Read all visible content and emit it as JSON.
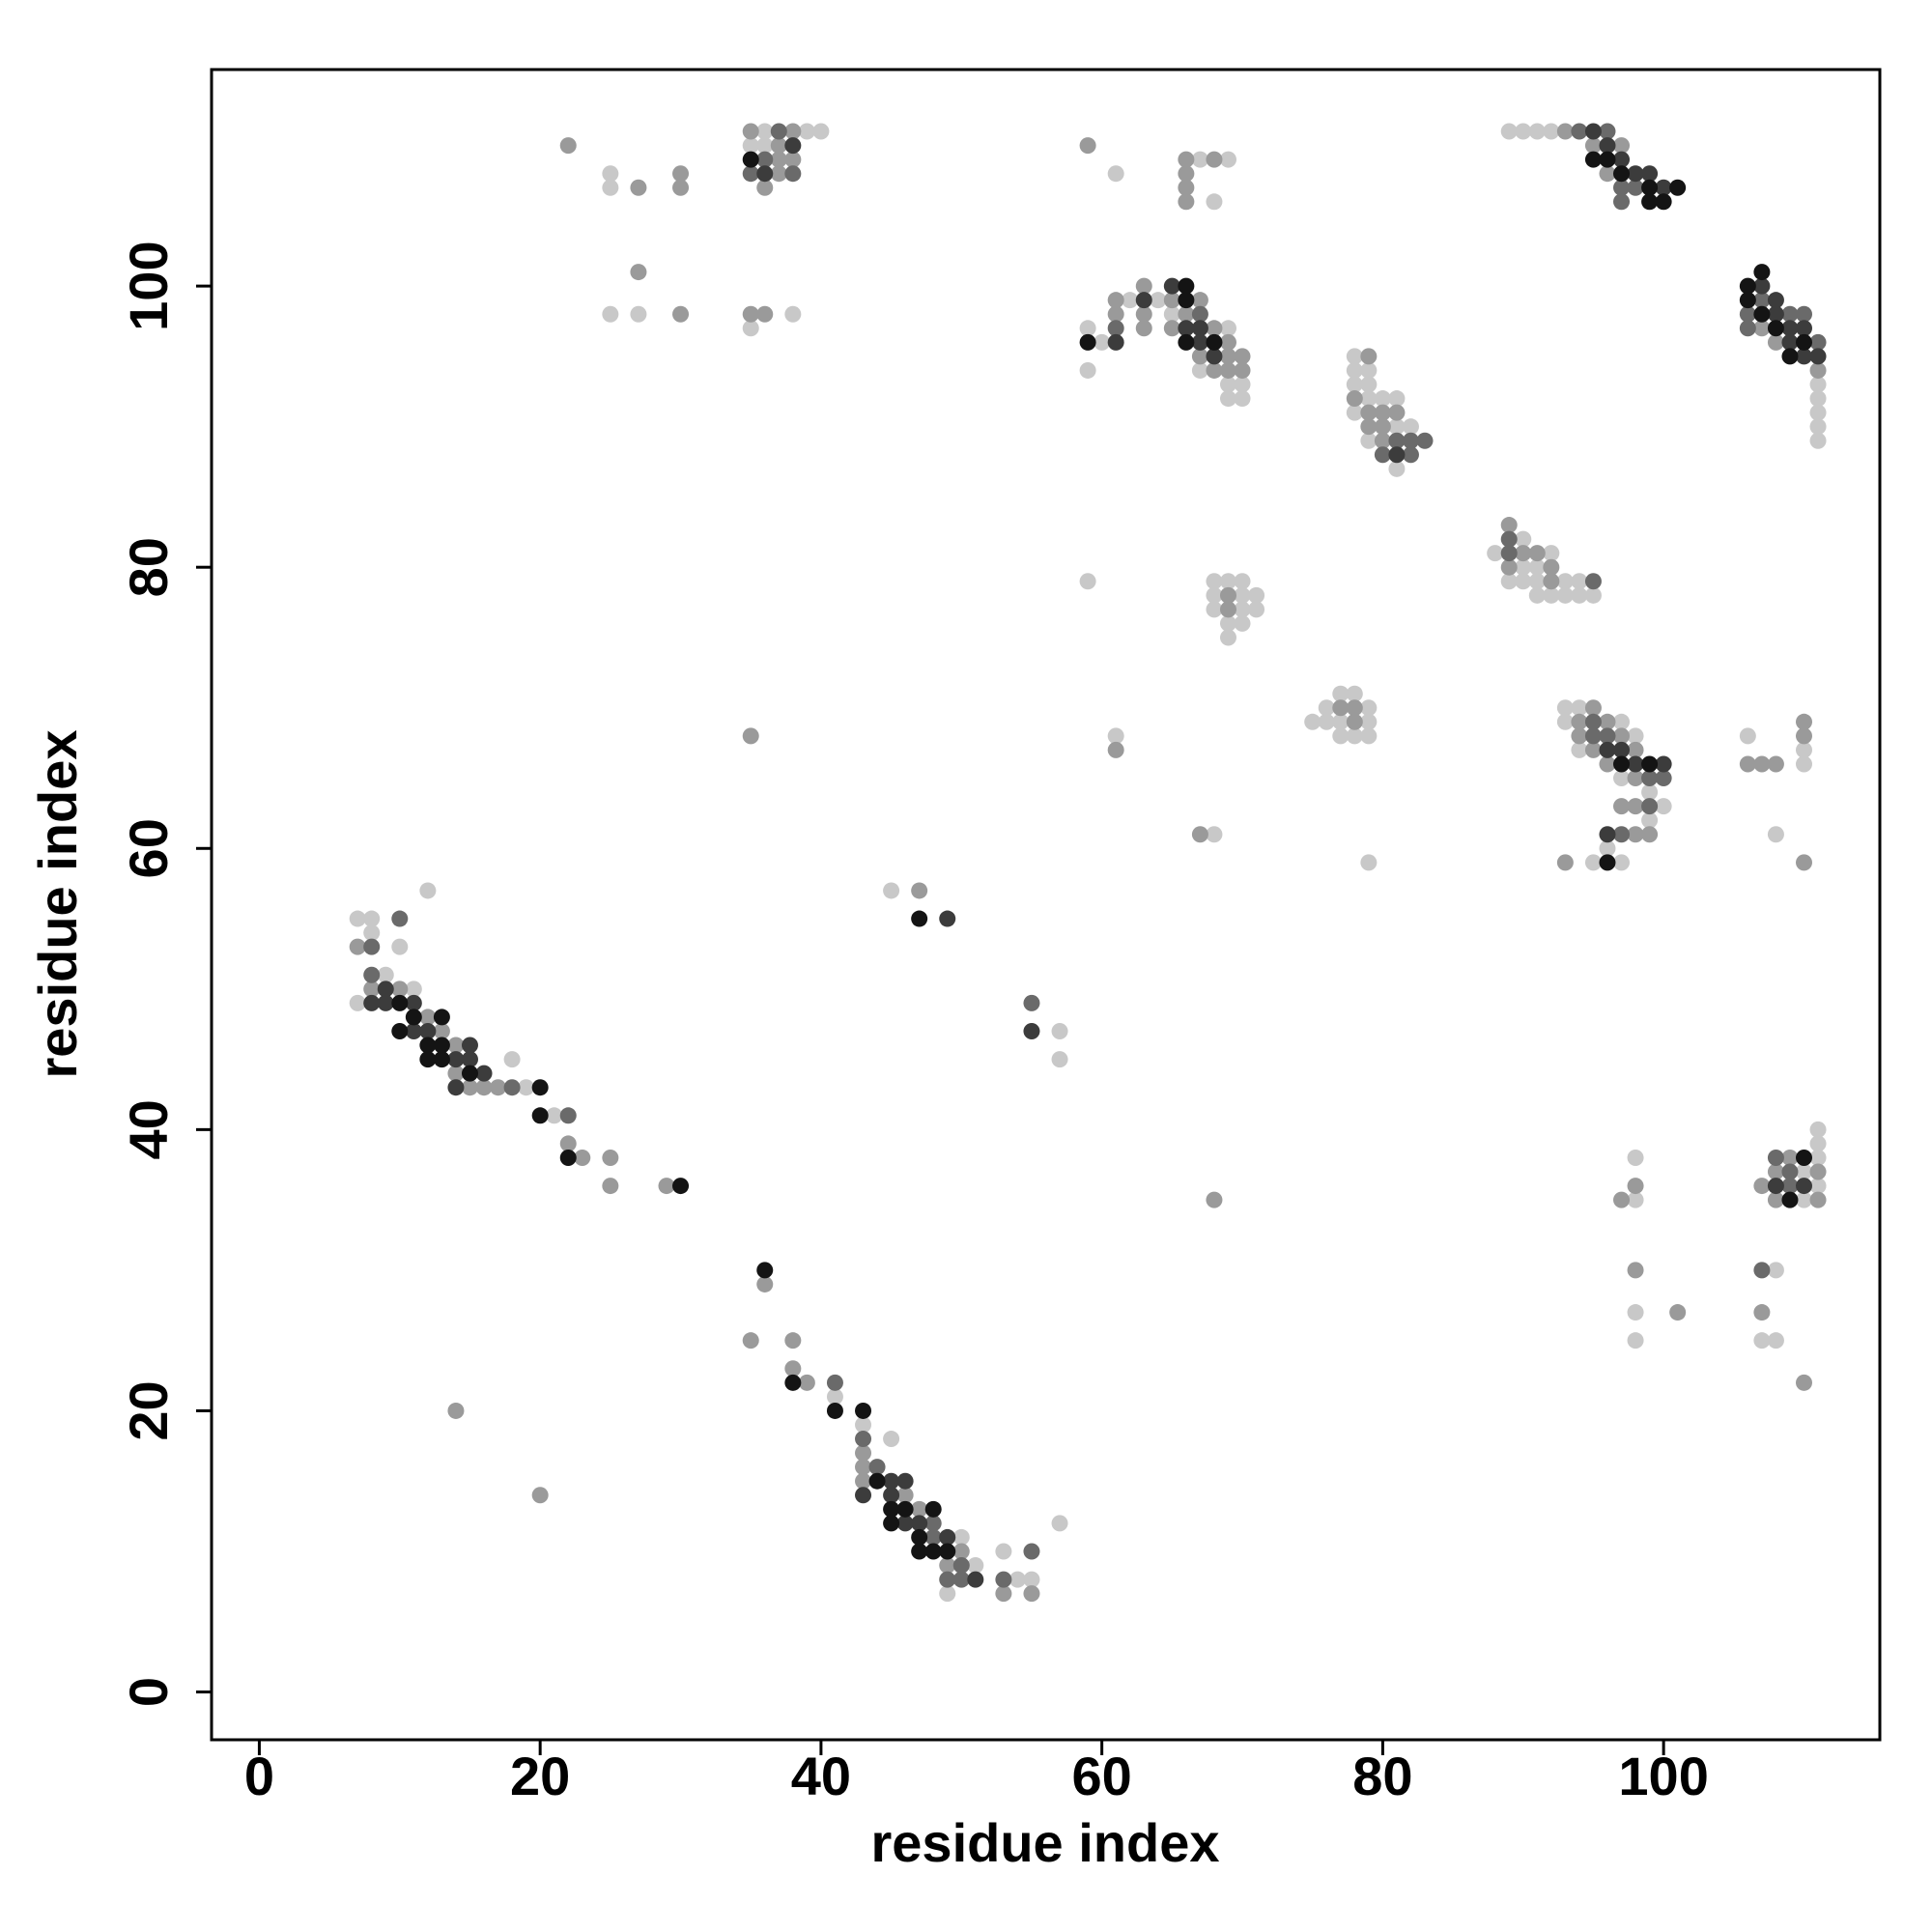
{
  "chart_data": {
    "type": "scatter",
    "xlabel": "residue index",
    "ylabel": "residue index",
    "xlim": [
      -3.4,
      115.4
    ],
    "ylim": [
      -3.4,
      115.4
    ],
    "xticks": [
      0,
      20,
      40,
      60,
      80,
      100
    ],
    "yticks": [
      0,
      20,
      40,
      60,
      80,
      100
    ],
    "series": [
      {
        "color": "#c8c8c8",
        "x": [
          7,
          8,
          8,
          10,
          12,
          7,
          9,
          11,
          18,
          19,
          21,
          41,
          43,
          45,
          50,
          51,
          49,
          53,
          54,
          55,
          57,
          45,
          57,
          57,
          25,
          25,
          25,
          27,
          35,
          38,
          36,
          39,
          40,
          35,
          36,
          61,
          67,
          69,
          68,
          59,
          59,
          60,
          62,
          64,
          65,
          67,
          69,
          69,
          69,
          70,
          70,
          59,
          61,
          68,
          68,
          69,
          70,
          68,
          70,
          71,
          68,
          70,
          71,
          69,
          70,
          69,
          75,
          76,
          76,
          77,
          77,
          77,
          78,
          78,
          79,
          79,
          79,
          79,
          78,
          78,
          79,
          78,
          79,
          79,
          80,
          81,
          78,
          81,
          82,
          79,
          81,
          88,
          90,
          92,
          90,
          91,
          89,
          90,
          91,
          93,
          94,
          91,
          92,
          93,
          94,
          95,
          89,
          90,
          91,
          92,
          111,
          111,
          111,
          111,
          111,
          93,
          94,
          93,
          97,
          98,
          94,
          97,
          99,
          100,
          99,
          96,
          95,
          97,
          106,
          110,
          110,
          108,
          98,
          98,
          98,
          98,
          108,
          107,
          108,
          111,
          111,
          111,
          110,
          111,
          110
        ],
        "y": [
          55,
          55,
          54,
          53,
          57,
          49,
          51,
          50,
          45,
          43,
          41,
          21,
          19,
          18,
          11,
          9,
          7,
          10,
          8,
          8,
          12,
          57,
          47,
          45,
          108,
          107,
          98,
          98,
          97,
          98,
          111,
          111,
          111,
          110,
          110,
          108,
          109,
          109,
          106,
          97,
          94,
          96,
          99,
          99,
          98,
          94,
          97,
          93,
          92,
          93,
          92,
          79,
          68,
          61,
          79,
          79,
          79,
          78,
          78,
          78,
          77,
          77,
          77,
          76,
          76,
          75,
          69,
          70,
          69,
          71,
          69,
          68,
          71,
          68,
          70,
          69,
          68,
          59,
          95,
          94,
          94,
          93,
          93,
          92,
          92,
          92,
          91,
          90,
          90,
          89,
          87,
          81,
          82,
          81,
          80,
          80,
          79,
          79,
          79,
          79,
          79,
          78,
          78,
          78,
          78,
          78,
          111,
          111,
          111,
          111,
          93,
          92,
          91,
          90,
          89,
          70,
          70,
          69,
          69,
          68,
          67,
          65,
          64,
          63,
          62,
          60,
          59,
          59,
          68,
          66,
          67,
          61,
          38,
          35,
          27,
          25,
          30,
          25,
          25,
          38,
          40,
          39,
          37,
          36,
          35
        ]
      },
      {
        "color": "#9a9a9a",
        "x": [
          7,
          8,
          10,
          12,
          13,
          14,
          14,
          15,
          16,
          17,
          22,
          23,
          25,
          25,
          29,
          14,
          20,
          36,
          35,
          38,
          38,
          39,
          43,
          43,
          43,
          46,
          47,
          50,
          49,
          53,
          55,
          47,
          22,
          27,
          30,
          30,
          27,
          30,
          35,
          36,
          35,
          38,
          37,
          37,
          38,
          37,
          36,
          35,
          59,
          66,
          68,
          66,
          66,
          66,
          61,
          61,
          63,
          63,
          63,
          65,
          65,
          66,
          67,
          67,
          68,
          68,
          69,
          69,
          69,
          70,
          70,
          61,
          67,
          68,
          69,
          69,
          77,
          78,
          78,
          79,
          78,
          79,
          80,
          81,
          79,
          80,
          80,
          89,
          90,
          91,
          89,
          92,
          92,
          93,
          95,
          97,
          96,
          107,
          108,
          111,
          95,
          94,
          96,
          94,
          97,
          95,
          98,
          96,
          98,
          97,
          98,
          98,
          99,
          93,
          110,
          106,
          107,
          108,
          110,
          110,
          98,
          97,
          98,
          101,
          107,
          110,
          107,
          109,
          108,
          111,
          108,
          111
        ],
        "y": [
          53,
          50,
          50,
          48,
          47,
          46,
          44,
          43,
          43,
          43,
          39,
          38,
          38,
          36,
          36,
          20,
          14,
          29,
          25,
          25,
          23,
          22,
          17,
          16,
          15,
          14,
          13,
          10,
          9,
          7,
          7,
          57,
          110,
          107,
          108,
          107,
          101,
          98,
          98,
          98,
          111,
          111,
          110,
          109,
          109,
          108,
          107,
          68,
          110,
          109,
          109,
          108,
          107,
          106,
          99,
          98,
          100,
          98,
          97,
          99,
          97,
          98,
          99,
          95,
          97,
          94,
          96,
          95,
          94,
          95,
          94,
          67,
          61,
          35,
          78,
          77,
          70,
          70,
          69,
          95,
          92,
          91,
          91,
          91,
          90,
          90,
          89,
          83,
          81,
          81,
          80,
          80,
          79,
          111,
          110,
          110,
          108,
          97,
          96,
          94,
          70,
          69,
          69,
          68,
          68,
          67,
          67,
          66,
          65,
          63,
          63,
          61,
          61,
          59,
          69,
          66,
          66,
          66,
          68,
          59,
          36,
          35,
          30,
          27,
          27,
          22,
          36,
          38,
          37,
          37,
          35,
          35
        ]
      },
      {
        "color": "#6a6a6a",
        "x": [
          8,
          10,
          8,
          18,
          22,
          41,
          43,
          44,
          48,
          48,
          50,
          49,
          50,
          53,
          55,
          55,
          37,
          36,
          35,
          38,
          61,
          67,
          81,
          82,
          83,
          80,
          82,
          89,
          89,
          95,
          94,
          96,
          97,
          98,
          97,
          107,
          106,
          109,
          110,
          106,
          111,
          95,
          95,
          96,
          99,
          100,
          99,
          97,
          107,
          108,
          109,
          109
        ],
        "y": [
          53,
          55,
          51,
          43,
          41,
          22,
          18,
          16,
          12,
          11,
          9,
          8,
          8,
          8,
          10,
          49,
          111,
          109,
          108,
          108,
          97,
          98,
          89,
          89,
          89,
          88,
          88,
          82,
          81,
          79,
          111,
          111,
          107,
          107,
          106,
          99,
          98,
          98,
          98,
          97,
          96,
          69,
          68,
          68,
          65,
          65,
          63,
          61,
          30,
          38,
          37,
          36
        ]
      },
      {
        "color": "#3c3c3c",
        "x": [
          8,
          9,
          9,
          11,
          11,
          12,
          14,
          15,
          15,
          16,
          14,
          45,
          46,
          43,
          45,
          46,
          47,
          49,
          51,
          49,
          55,
          38,
          36,
          61,
          63,
          65,
          66,
          67,
          67,
          68,
          81,
          95,
          96,
          97,
          98,
          99,
          100,
          107,
          108,
          108,
          109,
          110,
          109,
          110,
          111,
          96,
          97,
          98,
          100,
          96,
          108,
          110
        ],
        "y": [
          49,
          50,
          49,
          49,
          47,
          47,
          45,
          46,
          45,
          44,
          43,
          15,
          15,
          14,
          14,
          12,
          12,
          11,
          8,
          55,
          47,
          110,
          108,
          96,
          99,
          100,
          97,
          97,
          96,
          95,
          88,
          111,
          110,
          109,
          108,
          108,
          107,
          100,
          99,
          98,
          97,
          97,
          96,
          95,
          95,
          67,
          67,
          66,
          66,
          61,
          36,
          36
        ]
      },
      {
        "color": "#141414",
        "x": [
          10,
          11,
          10,
          12,
          13,
          12,
          13,
          13,
          15,
          20,
          20,
          22,
          30,
          36,
          38,
          41,
          43,
          44,
          45,
          46,
          48,
          45,
          47,
          47,
          48,
          49,
          47,
          35,
          59,
          66,
          66,
          66,
          68,
          95,
          96,
          97,
          99,
          101,
          99,
          100,
          107,
          106,
          106,
          107,
          108,
          110,
          109,
          97,
          99,
          96,
          110,
          109
        ],
        "y": [
          49,
          48,
          47,
          46,
          48,
          45,
          46,
          45,
          44,
          43,
          41,
          38,
          36,
          30,
          22,
          20,
          20,
          15,
          13,
          13,
          13,
          12,
          11,
          10,
          10,
          10,
          55,
          109,
          96,
          100,
          99,
          96,
          96,
          109,
          109,
          108,
          107,
          107,
          106,
          106,
          101,
          100,
          99,
          98,
          97,
          96,
          95,
          66,
          66,
          59,
          38,
          35
        ]
      }
    ]
  }
}
